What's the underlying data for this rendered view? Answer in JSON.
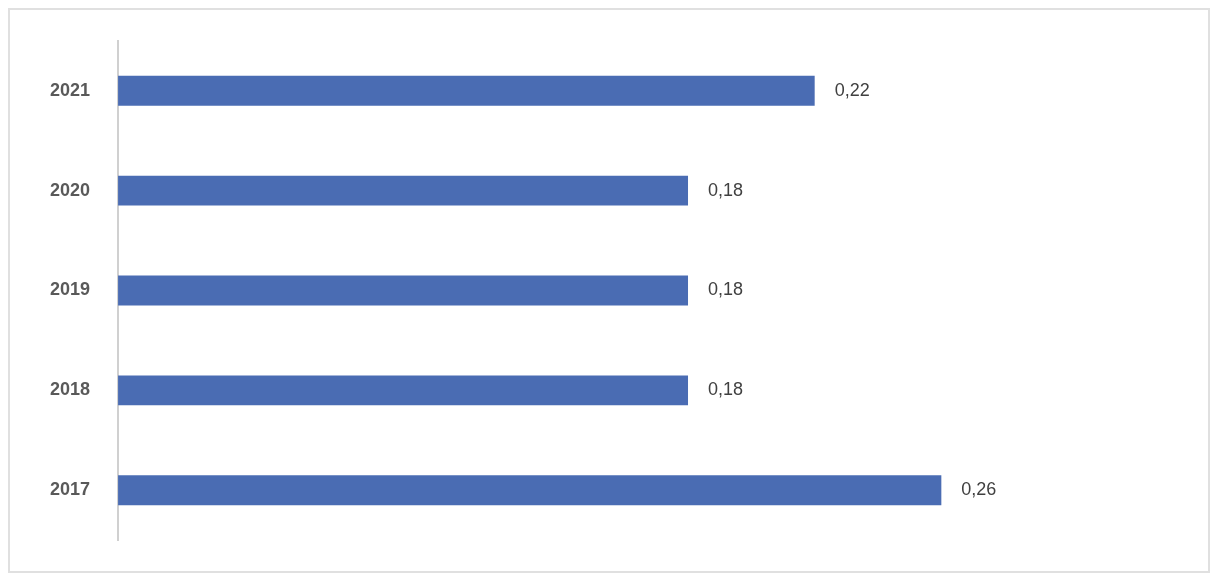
{
  "chart_data": {
    "type": "bar",
    "orientation": "horizontal",
    "categories": [
      "2021",
      "2020",
      "2019",
      "2018",
      "2017"
    ],
    "values": [
      0.22,
      0.18,
      0.18,
      0.18,
      0.26
    ],
    "value_labels": [
      "0,22",
      "0,18",
      "0,18",
      "0,18",
      "0,26"
    ],
    "color": "#4a6cb3",
    "tick_labels": "y"
  }
}
